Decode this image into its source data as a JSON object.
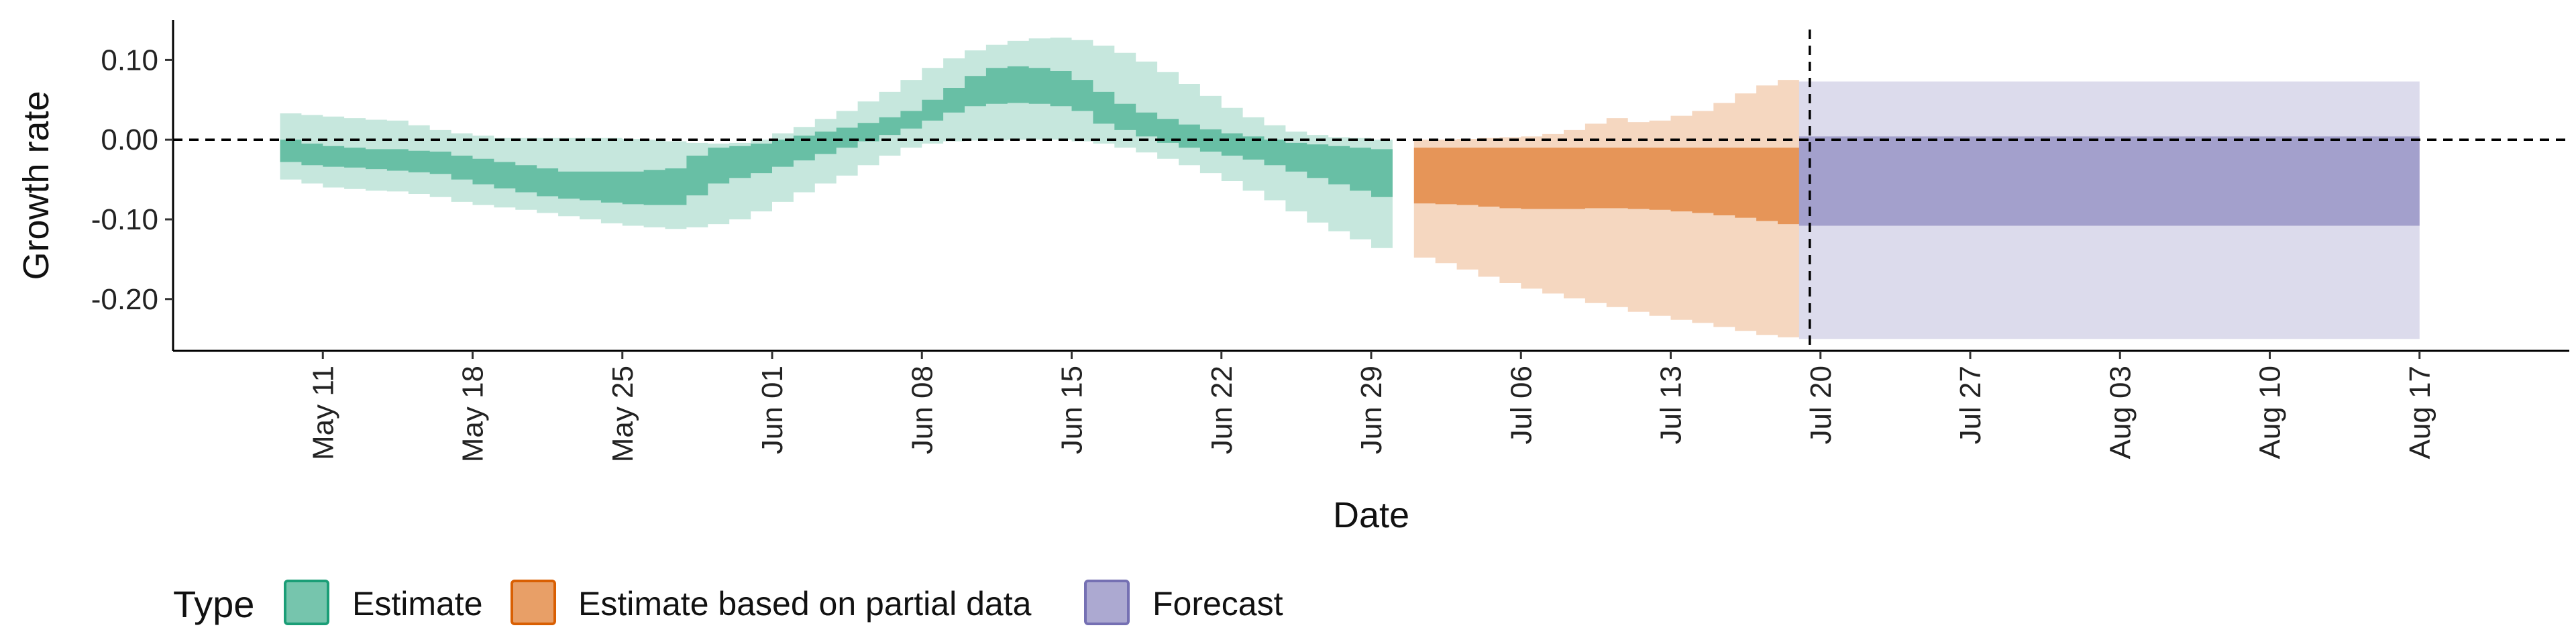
{
  "chart_data": {
    "type": "area",
    "xlabel": "Date",
    "ylabel": "Growth rate",
    "ylim": [
      -0.265,
      0.15
    ],
    "y_ticks": [
      0.1,
      0.0,
      -0.1,
      -0.2
    ],
    "y_tick_labels": [
      "0.10",
      "0.00",
      "-0.10",
      "-0.20"
    ],
    "xlim": [
      "2020-05-04",
      "2020-08-24"
    ],
    "x_ticks": [
      "2020-05-11",
      "2020-05-18",
      "2020-05-25",
      "2020-06-01",
      "2020-06-08",
      "2020-06-15",
      "2020-06-22",
      "2020-06-29",
      "2020-07-06",
      "2020-07-13",
      "2020-07-20",
      "2020-07-27",
      "2020-08-03",
      "2020-08-10",
      "2020-08-17"
    ],
    "x_tick_labels": [
      "May 11",
      "May 18",
      "May 25",
      "Jun 01",
      "Jun 08",
      "Jun 15",
      "Jun 22",
      "Jun 29",
      "Jul 06",
      "Jul 13",
      "Jul 20",
      "Jul 27",
      "Aug 03",
      "Aug 10",
      "Aug 17"
    ],
    "reference_lines": {
      "horizontal_y": 0,
      "vertical_date": "2020-07-19",
      "style": "dashed"
    },
    "legend": {
      "title": "Type",
      "position": "bottom-left"
    },
    "series": [
      {
        "name": "Estimate",
        "color": "#1b9e77",
        "x": [
          "2020-05-10",
          "2020-05-11",
          "2020-05-12",
          "2020-05-13",
          "2020-05-14",
          "2020-05-15",
          "2020-05-16",
          "2020-05-17",
          "2020-05-18",
          "2020-05-19",
          "2020-05-20",
          "2020-05-21",
          "2020-05-22",
          "2020-05-23",
          "2020-05-24",
          "2020-05-25",
          "2020-05-26",
          "2020-05-27",
          "2020-05-28",
          "2020-05-29",
          "2020-05-30",
          "2020-05-31",
          "2020-06-01",
          "2020-06-02",
          "2020-06-03",
          "2020-06-04",
          "2020-06-05",
          "2020-06-06",
          "2020-06-07",
          "2020-06-08",
          "2020-06-09",
          "2020-06-10",
          "2020-06-11",
          "2020-06-12",
          "2020-06-13",
          "2020-06-14",
          "2020-06-15",
          "2020-06-16",
          "2020-06-17",
          "2020-06-18",
          "2020-06-19",
          "2020-06-20",
          "2020-06-21",
          "2020-06-22",
          "2020-06-23",
          "2020-06-24",
          "2020-06-25",
          "2020-06-26",
          "2020-06-27",
          "2020-06-28",
          "2020-06-29",
          "2020-06-30"
        ],
        "lower_90": [
          -0.05,
          -0.055,
          -0.06,
          -0.062,
          -0.064,
          -0.065,
          -0.068,
          -0.072,
          -0.078,
          -0.082,
          -0.085,
          -0.088,
          -0.092,
          -0.096,
          -0.1,
          -0.105,
          -0.108,
          -0.11,
          -0.112,
          -0.11,
          -0.106,
          -0.1,
          -0.09,
          -0.078,
          -0.066,
          -0.055,
          -0.045,
          -0.032,
          -0.02,
          -0.01,
          -0.005,
          -0.002,
          -0.001,
          -0.001,
          0.0,
          0.0,
          0.0,
          -0.002,
          -0.005,
          -0.01,
          -0.016,
          -0.024,
          -0.032,
          -0.042,
          -0.052,
          -0.064,
          -0.076,
          -0.09,
          -0.104,
          -0.115,
          -0.125,
          -0.136
        ],
        "upper_90": [
          0.033,
          0.031,
          0.029,
          0.027,
          0.025,
          0.024,
          0.018,
          0.012,
          0.008,
          0.005,
          0.002,
          0.002,
          0.002,
          0.002,
          0.002,
          0.002,
          0.001,
          0.0,
          -0.002,
          -0.004,
          -0.005,
          -0.004,
          0.0,
          0.008,
          0.016,
          0.026,
          0.036,
          0.048,
          0.06,
          0.075,
          0.09,
          0.102,
          0.112,
          0.119,
          0.124,
          0.127,
          0.128,
          0.125,
          0.118,
          0.109,
          0.098,
          0.085,
          0.07,
          0.055,
          0.04,
          0.028,
          0.018,
          0.01,
          0.006,
          0.003,
          0.002,
          0.0
        ],
        "lower_50": [
          -0.028,
          -0.032,
          -0.034,
          -0.035,
          -0.037,
          -0.039,
          -0.041,
          -0.043,
          -0.05,
          -0.056,
          -0.061,
          -0.066,
          -0.071,
          -0.074,
          -0.076,
          -0.079,
          -0.081,
          -0.082,
          -0.082,
          -0.07,
          -0.055,
          -0.048,
          -0.042,
          -0.034,
          -0.026,
          -0.018,
          -0.01,
          -0.002,
          0.006,
          0.014,
          0.024,
          0.034,
          0.042,
          0.045,
          0.046,
          0.045,
          0.042,
          0.036,
          0.02,
          0.012,
          0.004,
          -0.004,
          -0.01,
          -0.015,
          -0.02,
          -0.025,
          -0.032,
          -0.04,
          -0.048,
          -0.056,
          -0.064,
          -0.072
        ],
        "upper_50": [
          0.0,
          -0.005,
          -0.008,
          -0.01,
          -0.012,
          -0.012,
          -0.014,
          -0.015,
          -0.02,
          -0.024,
          -0.028,
          -0.032,
          -0.036,
          -0.04,
          -0.04,
          -0.04,
          -0.04,
          -0.038,
          -0.036,
          -0.02,
          -0.01,
          -0.008,
          -0.005,
          0.0,
          0.005,
          0.01,
          0.015,
          0.021,
          0.028,
          0.036,
          0.05,
          0.065,
          0.08,
          0.09,
          0.092,
          0.09,
          0.086,
          0.075,
          0.06,
          0.045,
          0.034,
          0.026,
          0.019,
          0.013,
          0.008,
          0.004,
          0.0,
          -0.004,
          -0.006,
          -0.008,
          -0.01,
          -0.012
        ]
      },
      {
        "name": "Estimate based on partial data",
        "color": "#d95f02",
        "x": [
          "2020-07-02",
          "2020-07-03",
          "2020-07-04",
          "2020-07-05",
          "2020-07-06",
          "2020-07-07",
          "2020-07-08",
          "2020-07-09",
          "2020-07-10",
          "2020-07-11",
          "2020-07-12",
          "2020-07-13",
          "2020-07-14",
          "2020-07-15",
          "2020-07-16",
          "2020-07-17",
          "2020-07-18",
          "2020-07-19"
        ],
        "lower_90": [
          -0.148,
          -0.155,
          -0.163,
          -0.172,
          -0.18,
          -0.187,
          -0.193,
          -0.199,
          -0.205,
          -0.21,
          -0.216,
          -0.221,
          -0.226,
          -0.23,
          -0.235,
          -0.24,
          -0.245,
          -0.248
        ],
        "upper_90": [
          0.0,
          0.0,
          0.001,
          0.002,
          0.003,
          0.004,
          0.007,
          0.012,
          0.02,
          0.027,
          0.022,
          0.024,
          0.03,
          0.036,
          0.046,
          0.058,
          0.068,
          0.075
        ],
        "lower_50": [
          -0.08,
          -0.081,
          -0.082,
          -0.084,
          -0.086,
          -0.087,
          -0.087,
          -0.087,
          -0.086,
          -0.086,
          -0.087,
          -0.088,
          -0.09,
          -0.092,
          -0.095,
          -0.098,
          -0.102,
          -0.106
        ],
        "upper_50": [
          -0.01,
          -0.01,
          -0.01,
          -0.01,
          -0.01,
          -0.01,
          -0.01,
          -0.01,
          -0.01,
          -0.01,
          -0.01,
          -0.01,
          -0.01,
          -0.01,
          -0.01,
          -0.01,
          -0.01,
          -0.01
        ]
      },
      {
        "name": "Forecast",
        "color": "#7570b3",
        "x": [
          "2020-07-20",
          "2020-08-17"
        ],
        "lower_90": [
          -0.25,
          -0.25
        ],
        "upper_90": [
          0.073,
          0.073
        ],
        "lower_50": [
          -0.108,
          -0.108
        ],
        "upper_50": [
          0.004,
          0.004
        ]
      }
    ]
  }
}
